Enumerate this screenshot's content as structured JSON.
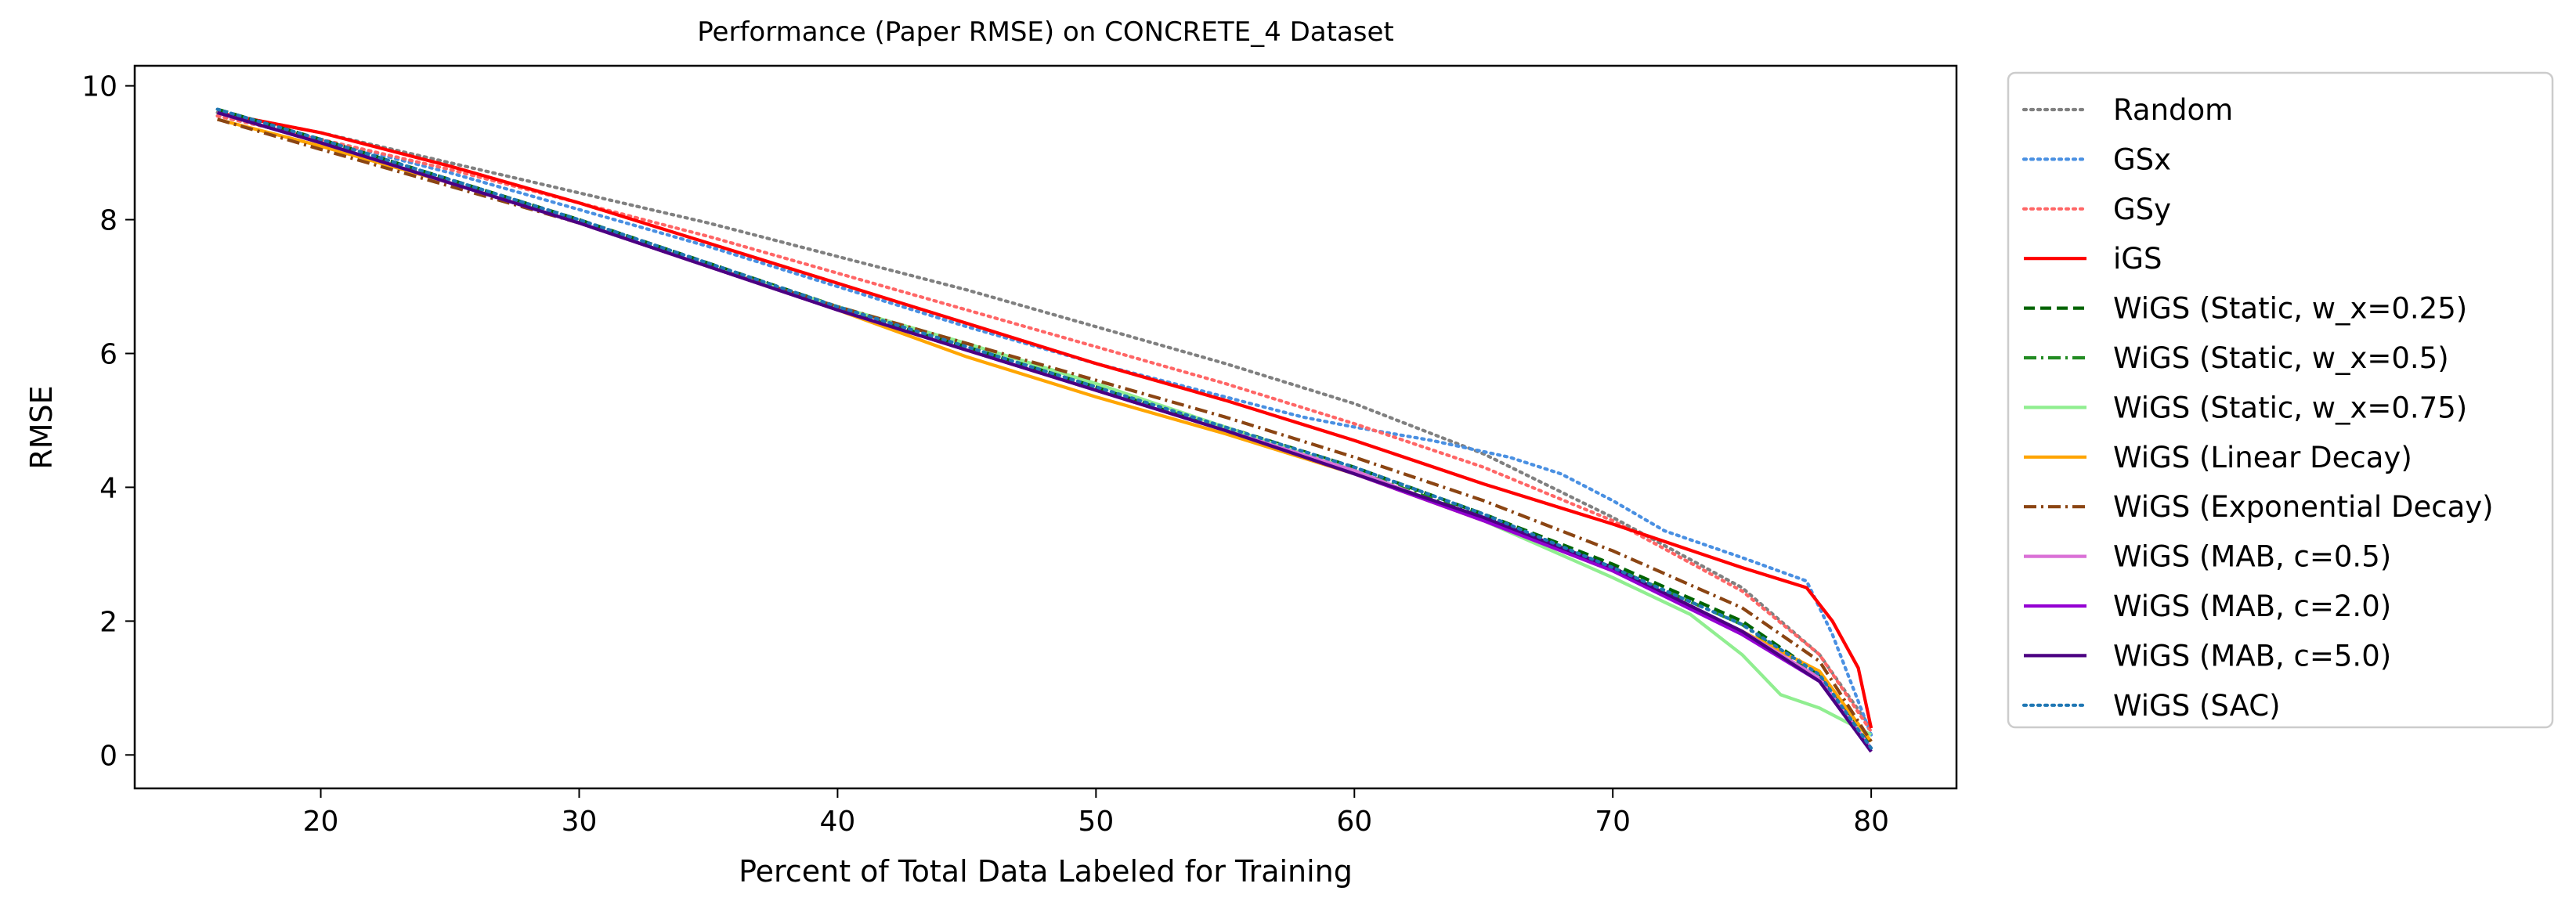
{
  "chart_data": {
    "type": "line",
    "title": "Performance (Paper RMSE) on CONCRETE_4 Dataset",
    "xlabel": "Percent of Total Data Labeled for Training",
    "ylabel": "RMSE",
    "xlim": [
      12.8,
      83.3
    ],
    "ylim": [
      -0.5,
      10.3
    ],
    "xticks": [
      20,
      30,
      40,
      50,
      60,
      70,
      80
    ],
    "yticks": [
      0,
      2,
      4,
      6,
      8,
      10
    ],
    "grid": false,
    "legend_position": "outside-right",
    "series": [
      {
        "name": "Random",
        "color": "#808080",
        "dash": "dotted",
        "x": [
          16,
          20,
          25,
          30,
          35,
          40,
          45,
          50,
          55,
          60,
          65,
          70,
          75,
          78,
          80
        ],
        "y": [
          9.6,
          9.3,
          8.85,
          8.4,
          7.95,
          7.45,
          6.95,
          6.4,
          5.85,
          5.25,
          4.5,
          3.55,
          2.5,
          1.5,
          0.4
        ]
      },
      {
        "name": "GSx",
        "color": "#4a90e2",
        "dash": "dotted",
        "x": [
          16,
          20,
          25,
          30,
          35,
          40,
          45,
          50,
          55,
          58,
          60,
          63,
          66,
          68,
          70,
          72,
          75,
          77.5,
          78.5,
          80
        ],
        "y": [
          9.55,
          9.2,
          8.7,
          8.15,
          7.6,
          7.0,
          6.4,
          5.85,
          5.35,
          5.05,
          4.9,
          4.7,
          4.45,
          4.2,
          3.8,
          3.35,
          2.95,
          2.6,
          1.8,
          0.3
        ]
      },
      {
        "name": "GSy",
        "color": "#ff6666",
        "dash": "dotted",
        "x": [
          16,
          20,
          25,
          30,
          35,
          40,
          45,
          50,
          55,
          60,
          65,
          70,
          75,
          78,
          80
        ],
        "y": [
          9.55,
          9.2,
          8.75,
          8.25,
          7.75,
          7.2,
          6.65,
          6.1,
          5.55,
          4.95,
          4.3,
          3.5,
          2.45,
          1.5,
          0.35
        ]
      },
      {
        "name": "iGS",
        "color": "#ff0000",
        "dash": "solid",
        "x": [
          16,
          20,
          25,
          30,
          35,
          40,
          45,
          50,
          55,
          60,
          65,
          70,
          75,
          77.5,
          78.5,
          79.5,
          80
        ],
        "y": [
          9.6,
          9.3,
          8.8,
          8.25,
          7.65,
          7.05,
          6.45,
          5.85,
          5.3,
          4.7,
          4.05,
          3.45,
          2.8,
          2.5,
          2.0,
          1.3,
          0.4
        ]
      },
      {
        "name": "WiGS (Static, w_x=0.25)",
        "color": "#006400",
        "dash": "dashed",
        "x": [
          16,
          20,
          25,
          30,
          35,
          40,
          45,
          50,
          55,
          60,
          65,
          70,
          75,
          78,
          80
        ],
        "y": [
          9.65,
          9.2,
          8.6,
          8.0,
          7.35,
          6.7,
          6.1,
          5.5,
          4.9,
          4.3,
          3.6,
          2.85,
          2.0,
          1.2,
          0.15
        ]
      },
      {
        "name": "WiGS (Static, w_x=0.5)",
        "color": "#228b22",
        "dash": "dashdot",
        "x": [
          16,
          20,
          25,
          30,
          35,
          40,
          45,
          50,
          55,
          60,
          65,
          70,
          75,
          78,
          80
        ],
        "y": [
          9.6,
          9.15,
          8.55,
          7.95,
          7.3,
          6.65,
          6.05,
          5.45,
          4.85,
          4.25,
          3.55,
          2.8,
          1.95,
          1.15,
          0.1
        ]
      },
      {
        "name": "WiGS (Static, w_x=0.75)",
        "color": "#90ee90",
        "dash": "solid",
        "x": [
          16,
          20,
          25,
          30,
          35,
          40,
          45,
          50,
          55,
          60,
          65,
          70,
          73,
          75,
          76.5,
          78,
          80
        ],
        "y": [
          9.6,
          9.15,
          8.55,
          7.95,
          7.3,
          6.7,
          6.15,
          5.55,
          4.9,
          4.25,
          3.5,
          2.65,
          2.1,
          1.5,
          0.9,
          0.7,
          0.3
        ]
      },
      {
        "name": "WiGS (Linear Decay)",
        "color": "#ffa500",
        "dash": "solid",
        "x": [
          16,
          20,
          25,
          30,
          35,
          40,
          45,
          50,
          55,
          60,
          65,
          70,
          75,
          78,
          80
        ],
        "y": [
          9.5,
          9.1,
          8.55,
          7.95,
          7.3,
          6.65,
          5.95,
          5.35,
          4.8,
          4.2,
          3.5,
          2.75,
          1.85,
          1.25,
          0.2
        ]
      },
      {
        "name": "WiGS (Exponential Decay)",
        "color": "#8b4513",
        "dash": "dashdot",
        "x": [
          16,
          20,
          25,
          30,
          35,
          40,
          45,
          50,
          55,
          60,
          65,
          70,
          75,
          78,
          80
        ],
        "y": [
          9.5,
          9.05,
          8.5,
          7.95,
          7.3,
          6.7,
          6.15,
          5.6,
          5.05,
          4.45,
          3.8,
          3.05,
          2.2,
          1.4,
          0.2
        ]
      },
      {
        "name": "WiGS (MAB, c=0.5)",
        "color": "#da70d6",
        "dash": "solid",
        "x": [
          16,
          20,
          25,
          30,
          35,
          40,
          45,
          50,
          55,
          60,
          65,
          70,
          75,
          78,
          80
        ],
        "y": [
          9.6,
          9.15,
          8.55,
          7.95,
          7.3,
          6.65,
          6.05,
          5.45,
          4.85,
          4.25,
          3.5,
          2.75,
          1.85,
          1.15,
          0.1
        ]
      },
      {
        "name": "WiGS (MAB, c=2.0)",
        "color": "#9400d3",
        "dash": "solid",
        "x": [
          16,
          20,
          25,
          30,
          35,
          40,
          45,
          50,
          55,
          60,
          65,
          70,
          75,
          78,
          80
        ],
        "y": [
          9.6,
          9.15,
          8.55,
          7.95,
          7.3,
          6.65,
          6.05,
          5.45,
          4.85,
          4.2,
          3.5,
          2.75,
          1.8,
          1.1,
          0.05
        ]
      },
      {
        "name": "WiGS (MAB, c=5.0)",
        "color": "#4b0082",
        "dash": "solid",
        "x": [
          16,
          20,
          25,
          30,
          35,
          40,
          45,
          50,
          55,
          60,
          65,
          70,
          75,
          78,
          80
        ],
        "y": [
          9.6,
          9.15,
          8.55,
          7.95,
          7.3,
          6.65,
          6.05,
          5.45,
          4.85,
          4.2,
          3.55,
          2.8,
          1.85,
          1.1,
          0.05
        ]
      },
      {
        "name": "WiGS (SAC)",
        "color": "#1f77b4",
        "dash": "dotted",
        "x": [
          16,
          20,
          25,
          30,
          35,
          40,
          45,
          50,
          55,
          60,
          65,
          70,
          75,
          78,
          80
        ],
        "y": [
          9.65,
          9.2,
          8.6,
          8.0,
          7.35,
          6.7,
          6.1,
          5.5,
          4.9,
          4.3,
          3.6,
          2.8,
          1.95,
          1.2,
          0.1
        ]
      }
    ]
  }
}
